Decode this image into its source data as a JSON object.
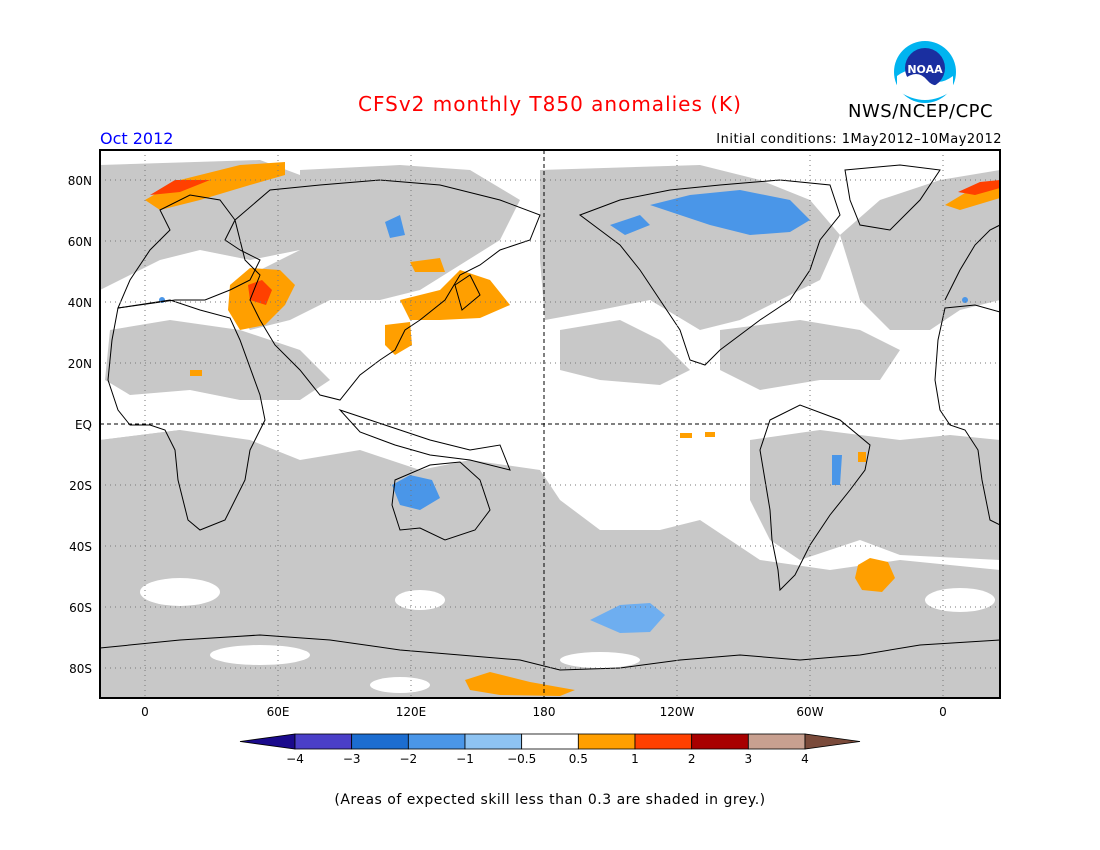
{
  "header": {
    "title": "CFSv2 monthly T850 anomalies (K)",
    "month": "Oct 2012",
    "initial_conditions": "Initial conditions: 1May2012–10May2012",
    "agency": "NWS/NCEP/CPC",
    "logo_text": "NOAA"
  },
  "axes": {
    "lat_labels": [
      "80N",
      "60N",
      "40N",
      "20N",
      "EQ",
      "20S",
      "40S",
      "60S",
      "80S"
    ],
    "lon_labels": [
      "0",
      "60E",
      "120E",
      "180",
      "120W",
      "60W",
      "0"
    ]
  },
  "colorbar": {
    "labels": [
      "−4",
      "−3",
      "−2",
      "−1",
      "−0.5",
      "0.5",
      "1",
      "2",
      "3",
      "4"
    ],
    "colors": [
      "#1a0a8c",
      "#4a3fc8",
      "#1c6dd0",
      "#4a96e8",
      "#8ec3f2",
      "#ffffff",
      "#ff9f00",
      "#ff4000",
      "#a80000",
      "#c8a090",
      "#7a4a3a"
    ]
  },
  "legend_note": "(Areas of expected skill less than 0.3 are shaded in grey.)",
  "map_colors": {
    "ocean_background": "#ffffff",
    "low_skill_grey": "#c8c8c8",
    "warm_anomaly": "#ff9f00",
    "strong_warm_anomaly": "#ff4000",
    "cool_anomaly": "#4a96e8",
    "light_cool_anomaly": "#8ec3f2"
  }
}
